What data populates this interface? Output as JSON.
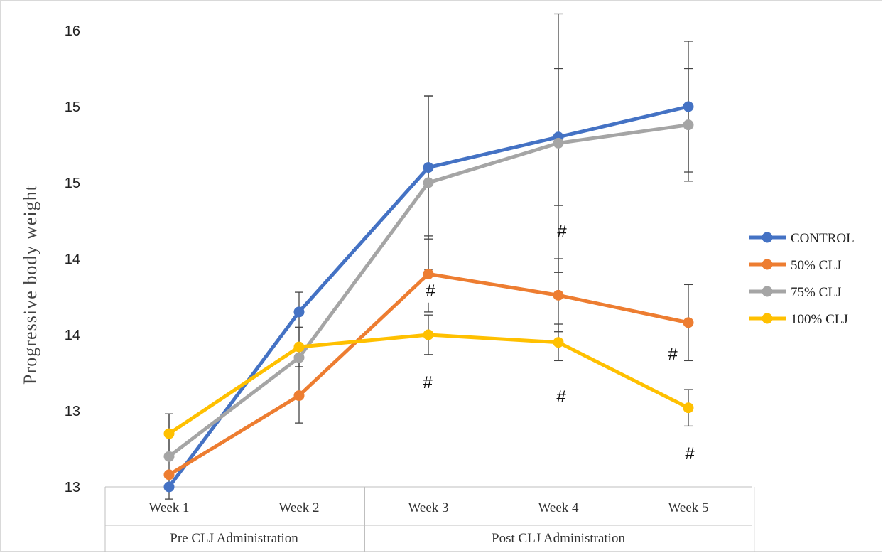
{
  "chart_data": {
    "type": "line",
    "title": "",
    "ylabel": "Progressive body weight",
    "y_ticks": [
      "13",
      "13",
      "14",
      "14",
      "15",
      "15",
      "16"
    ],
    "y_tick_positions": [
      12.5,
      13.0,
      13.5,
      14.0,
      14.5,
      15.0,
      15.5
    ],
    "ylim": [
      12.5,
      15.5
    ],
    "categories": [
      "Week 1",
      "Week 2",
      "Week 3",
      "Week 4",
      "Week 5"
    ],
    "groups": [
      {
        "label": "Pre CLJ Administration",
        "span": 2
      },
      {
        "label": "Post CLJ Administration",
        "span": 3
      }
    ],
    "series": [
      {
        "name": "CONTROL",
        "color": "#4472C4",
        "values": [
          12.5,
          13.65,
          14.6,
          14.8,
          15.0
        ],
        "error": [
          0.0,
          0.0,
          0.47,
          0.45,
          0.43
        ]
      },
      {
        "name": "50% CLJ",
        "color": "#ED7D31",
        "values": [
          12.58,
          13.1,
          13.9,
          13.76,
          13.58
        ],
        "error": [
          0.0,
          0.0,
          0.25,
          0.24,
          0.25
        ]
      },
      {
        "name": "75% CLJ",
        "color": "#A5A5A5",
        "values": [
          12.7,
          13.35,
          14.5,
          14.76,
          14.88
        ],
        "error": [
          0.28,
          0.43,
          0.57,
          0.85,
          0.37
        ]
      },
      {
        "name": "100% CLJ",
        "color": "#FFC000",
        "values": [
          12.85,
          13.42,
          13.5,
          13.45,
          13.02
        ],
        "error": [
          0.13,
          0.13,
          0.13,
          0.12,
          0.12
        ]
      }
    ],
    "annotations": [
      "#",
      "#",
      "#",
      "#",
      "#",
      "#"
    ],
    "legend_position": "right",
    "grid": false
  }
}
